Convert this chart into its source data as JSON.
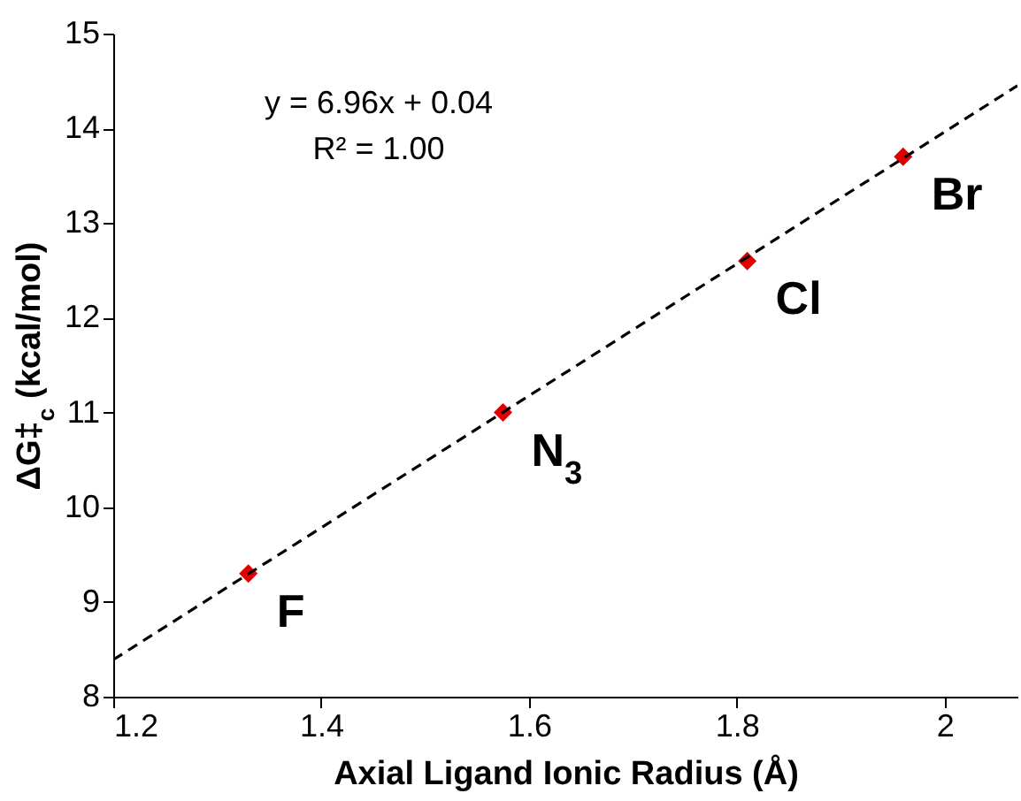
{
  "chart_data": {
    "type": "scatter",
    "xlabel": "Axial Ligand Ionic Radius (Å)",
    "ylabel": "ΔG‡$_{c}$ (kcal/mol)",
    "xlim": [
      1.2,
      2.07
    ],
    "xticks": [
      1.2,
      1.4,
      1.6,
      1.8,
      2
    ],
    "ylim": [
      8,
      15
    ],
    "yticks": [
      8,
      9,
      10,
      11,
      12,
      13,
      14,
      15
    ],
    "grid": false,
    "series": [
      {
        "type": "scatter",
        "color": "#e00000",
        "marker": "diamond",
        "x": [
          1.33,
          1.575,
          1.81,
          1.96
        ],
        "values": [
          9.3,
          11.0,
          12.6,
          13.7
        ]
      },
      {
        "type": "line",
        "color": "#000000",
        "line_style": "dashed",
        "x": [
          1.2,
          2.07
        ],
        "values": [
          8.39,
          14.45
        ]
      }
    ],
    "annotations": [
      "y = 6.96x + 0.04",
      "R² = 1.00",
      {
        "text": "F",
        "x": 1.33,
        "y": 9.3
      },
      {
        "text": "N$_{3}$",
        "x": 1.575,
        "y": 11.0
      },
      {
        "text": "Cl",
        "x": 1.81,
        "y": 12.6
      },
      {
        "text": "Br",
        "x": 1.96,
        "y": 13.7
      }
    ]
  }
}
